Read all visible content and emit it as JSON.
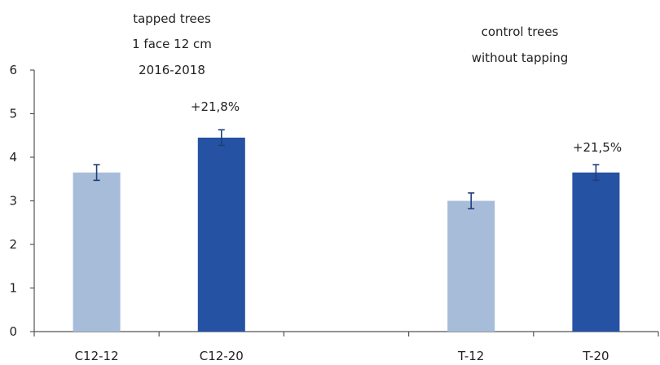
{
  "chart_data": {
    "type": "bar",
    "categories": [
      "C12-12",
      "C12-20",
      "",
      "T-12",
      "T-20"
    ],
    "values": [
      3.65,
      4.45,
      null,
      3.0,
      3.65
    ],
    "errors": [
      0.18,
      0.18,
      null,
      0.18,
      0.18
    ],
    "bar_colors": [
      "#a7bcd8",
      "#2552a3",
      null,
      "#a7bcd8",
      "#2552a3"
    ],
    "ylim": [
      0,
      6
    ],
    "yticks": [
      "0",
      "1",
      "2",
      "3",
      "4",
      "5",
      "6"
    ],
    "annotations": [
      {
        "category": "C12-20",
        "text": "+21,8%"
      },
      {
        "category": "T-20",
        "text": "+21,5%"
      }
    ],
    "group_labels": [
      {
        "lines": [
          "tapped trees",
          "1 face 12 cm",
          "2016-2018"
        ]
      },
      {
        "lines": [
          "control trees",
          "without tapping"
        ]
      }
    ],
    "grid": false,
    "title": "",
    "xlabel": "",
    "ylabel": ""
  },
  "colors": {
    "axis": "#555555",
    "text": "#222222",
    "error_bar": "#1f3f7a"
  }
}
